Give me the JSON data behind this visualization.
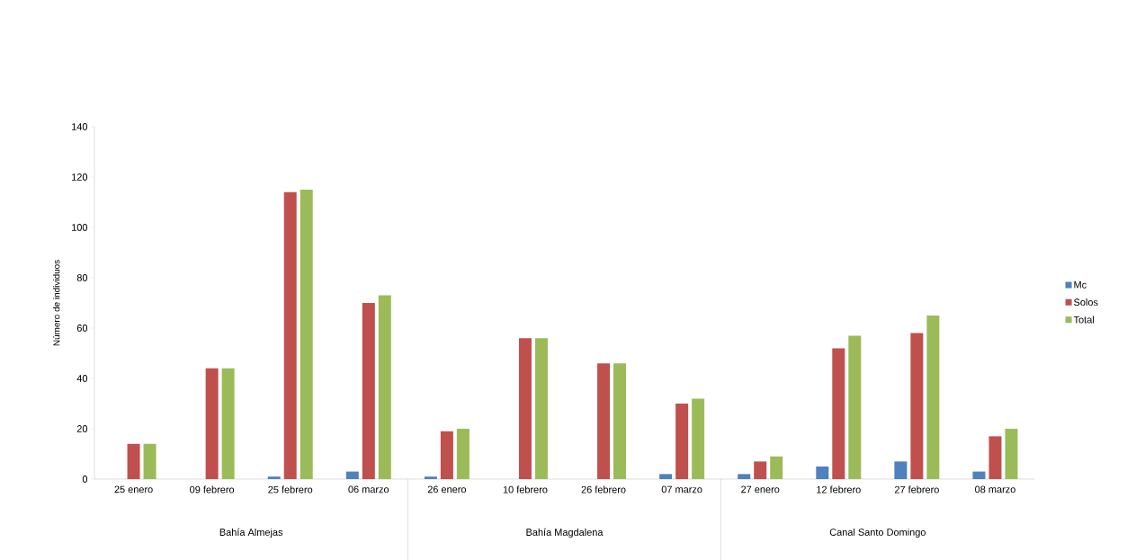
{
  "chart_data": {
    "type": "bar",
    "ylabel": "Número de individuos",
    "categories": [
      "25 enero",
      "09 febrero",
      "25 febrero",
      "06 marzo",
      "26 enero",
      "10 febrero",
      "26 febrero",
      "07 marzo",
      "27 enero",
      "12 febrero",
      "27 febrero",
      "08 marzo"
    ],
    "series": [
      {
        "name": "Mc",
        "color": "#4f81bd",
        "values": [
          0,
          0,
          1,
          3,
          1,
          0,
          0,
          2,
          2,
          5,
          7,
          3
        ]
      },
      {
        "name": "Solos",
        "color": "#c0504d",
        "values": [
          14,
          44,
          114,
          70,
          19,
          56,
          46,
          30,
          7,
          52,
          58,
          17
        ]
      },
      {
        "name": "Total",
        "color": "#9bbb59",
        "values": [
          14,
          44,
          115,
          73,
          20,
          56,
          46,
          32,
          9,
          57,
          65,
          20
        ]
      }
    ],
    "ylim": [
      0,
      140
    ],
    "yticks": [
      0,
      20,
      40,
      60,
      80,
      100,
      120,
      140
    ],
    "legend": "right",
    "annotations": [
      "Bahía Almejas",
      "Bahía Magdalena",
      "Canal Santo Domingo"
    ]
  }
}
